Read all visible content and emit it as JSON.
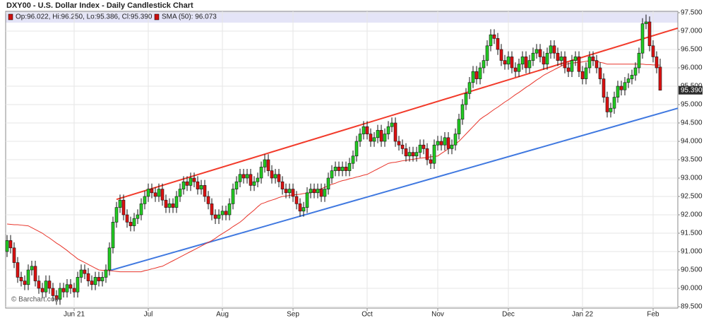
{
  "chart_data": {
    "type": "candlestick",
    "title": "DXY00 - U.S. Dollar Index - Daily Candlestick Chart",
    "ohlc_legend": "Op:96.022, Hi:96.250, Lo:95.386, Cl:95.390",
    "sma_legend": "SMA (50): 96.073",
    "watermark": "© Barchart.com",
    "last_price": {
      "value": 95.39,
      "label": "95.390"
    },
    "up_color": "#22cc22",
    "down_color": "#dd1111",
    "grid": true,
    "ylim": [
      89.5,
      97.5
    ],
    "yticks": [
      {
        "value": 89.5,
        "label": "89.500"
      },
      {
        "value": 90,
        "label": "90.000"
      },
      {
        "value": 90.5,
        "label": "90.500"
      },
      {
        "value": 91,
        "label": "91.000"
      },
      {
        "value": 91.5,
        "label": "91.500"
      },
      {
        "value": 92,
        "label": "92.000"
      },
      {
        "value": 92.5,
        "label": "92.500"
      },
      {
        "value": 93,
        "label": "93.000"
      },
      {
        "value": 93.5,
        "label": "93.500"
      },
      {
        "value": 94,
        "label": "94.000"
      },
      {
        "value": 94.5,
        "label": "94.500"
      },
      {
        "value": 95,
        "label": "95.000"
      },
      {
        "value": 95.5,
        "label": "95.500"
      },
      {
        "value": 96,
        "label": "96.000"
      },
      {
        "value": 96.5,
        "label": "96.500"
      },
      {
        "value": 97,
        "label": "97.000"
      },
      {
        "value": 97.5,
        "label": "97.500"
      }
    ],
    "categories": [
      null,
      null,
      null,
      null,
      null,
      null,
      null,
      null,
      null,
      null,
      null,
      null,
      null,
      null,
      null,
      null,
      null,
      null,
      null,
      "Jun 21",
      null,
      null,
      null,
      null,
      null,
      null,
      null,
      null,
      null,
      null,
      null,
      null,
      null,
      null,
      null,
      null,
      null,
      null,
      null,
      null,
      "Jul",
      null,
      null,
      null,
      null,
      null,
      null,
      null,
      null,
      null,
      null,
      null,
      null,
      null,
      null,
      null,
      null,
      null,
      null,
      null,
      null,
      "Aug",
      null,
      null,
      null,
      null,
      null,
      null,
      null,
      null,
      null,
      null,
      null,
      null,
      null,
      null,
      null,
      null,
      null,
      null,
      null,
      "Sep",
      null,
      null,
      null,
      null,
      null,
      null,
      null,
      null,
      null,
      null,
      null,
      null,
      null,
      null,
      null,
      null,
      null,
      null,
      null,
      null,
      "Oct",
      null,
      null,
      null,
      null,
      null,
      null,
      null,
      null,
      null,
      null,
      null,
      null,
      null,
      null,
      null,
      null,
      null,
      null,
      null,
      "Nov",
      null,
      null,
      null,
      null,
      null,
      null,
      null,
      null,
      null,
      null,
      null,
      null,
      null,
      null,
      null,
      null,
      null,
      null,
      null,
      "Dec",
      null,
      null,
      null,
      null,
      null,
      null,
      null,
      null,
      null,
      null,
      null,
      null,
      null,
      null,
      null,
      null,
      null,
      null,
      null,
      null,
      "Jan 22",
      null,
      null,
      null,
      null,
      null,
      null,
      null,
      null,
      null,
      null,
      null,
      null,
      null,
      null,
      null,
      null,
      null,
      null,
      null,
      "Feb",
      null,
      null
    ],
    "open": [
      91.0,
      91.3,
      91.1,
      90.7,
      90.3,
      90.2,
      90.1,
      90.5,
      90.6,
      90.2,
      90.0,
      89.9,
      90.2,
      90.0,
      89.8,
      89.7,
      90.0,
      89.9,
      90.1,
      90.0,
      89.9,
      90.3,
      90.5,
      90.4,
      90.2,
      90.1,
      90.3,
      90.2,
      90.3,
      90.5,
      91.1,
      91.8,
      92.2,
      92.4,
      92.0,
      91.8,
      91.7,
      91.9,
      92.0,
      92.3,
      92.5,
      92.7,
      92.6,
      92.5,
      92.7,
      92.4,
      92.2,
      92.3,
      92.2,
      92.5,
      92.7,
      92.9,
      92.8,
      93.0,
      92.9,
      92.7,
      92.8,
      92.5,
      92.3,
      92.0,
      91.9,
      92.0,
      92.1,
      92.0,
      92.3,
      92.7,
      92.9,
      93.1,
      93.0,
      93.1,
      92.8,
      92.9,
      93.0,
      93.3,
      93.5,
      93.2,
      93.0,
      93.1,
      92.9,
      92.7,
      92.6,
      92.7,
      92.5,
      92.3,
      92.1,
      92.2,
      92.6,
      92.7,
      92.6,
      92.7,
      92.5,
      92.7,
      93.0,
      93.2,
      93.3,
      93.2,
      93.3,
      93.2,
      93.4,
      93.6,
      94.0,
      94.2,
      94.4,
      94.2,
      94.0,
      94.1,
      94.3,
      94.0,
      94.2,
      94.4,
      94.5,
      94.0,
      93.9,
      93.8,
      93.6,
      93.7,
      93.6,
      93.7,
      93.9,
      93.8,
      93.5,
      93.4,
      93.9,
      94.0,
      93.9,
      94.1,
      93.8,
      93.9,
      94.2,
      94.6,
      95.0,
      95.3,
      95.6,
      95.9,
      95.7,
      96.0,
      96.2,
      96.6,
      96.9,
      96.8,
      96.5,
      96.2,
      96.1,
      96.3,
      96.0,
      95.9,
      96.1,
      96.3,
      96.0,
      96.2,
      96.4,
      96.5,
      96.3,
      96.1,
      96.4,
      96.6,
      96.4,
      96.2,
      96.3,
      96.0,
      95.9,
      96.2,
      96.3,
      95.9,
      95.7,
      96.0,
      96.3,
      96.2,
      96.0,
      95.7,
      95.2,
      94.8,
      94.9,
      95.2,
      95.5,
      95.4,
      95.6,
      95.7,
      95.8,
      96.0,
      96.4,
      97.2,
      97.25,
      96.6,
      96.3,
      96.022
    ],
    "high": [
      91.45,
      91.45,
      91.25,
      90.85,
      90.45,
      90.35,
      90.65,
      90.75,
      90.75,
      90.35,
      90.15,
      90.35,
      90.35,
      90.15,
      89.95,
      90.15,
      90.15,
      90.25,
      90.25,
      90.15,
      90.45,
      90.65,
      90.65,
      90.55,
      90.35,
      90.45,
      90.45,
      90.45,
      90.65,
      91.25,
      91.95,
      92.35,
      92.55,
      92.55,
      92.15,
      91.95,
      92.05,
      92.15,
      92.45,
      92.65,
      92.85,
      92.85,
      92.75,
      92.85,
      92.85,
      92.55,
      92.45,
      92.45,
      92.65,
      92.85,
      93.05,
      93.05,
      93.15,
      93.15,
      93.05,
      92.95,
      92.95,
      92.65,
      92.45,
      92.15,
      92.15,
      92.25,
      92.25,
      92.45,
      92.85,
      93.05,
      93.25,
      93.25,
      93.25,
      93.25,
      93.05,
      93.15,
      93.45,
      93.65,
      93.65,
      93.35,
      93.25,
      93.25,
      93.05,
      92.85,
      92.85,
      92.85,
      92.65,
      92.45,
      92.35,
      92.75,
      92.85,
      92.85,
      92.85,
      92.85,
      92.85,
      93.15,
      93.35,
      93.45,
      93.45,
      93.45,
      93.45,
      93.55,
      93.75,
      94.15,
      94.35,
      94.55,
      94.55,
      94.35,
      94.25,
      94.45,
      94.45,
      94.35,
      94.55,
      94.65,
      94.65,
      94.15,
      94.05,
      93.95,
      93.85,
      93.85,
      93.85,
      94.05,
      94.05,
      93.95,
      93.65,
      94.05,
      94.15,
      94.15,
      94.25,
      94.25,
      94.05,
      94.35,
      94.75,
      95.15,
      95.45,
      95.75,
      96.05,
      96.05,
      96.15,
      96.35,
      96.75,
      97.05,
      97.05,
      96.95,
      96.65,
      96.35,
      96.45,
      96.45,
      96.15,
      96.25,
      96.45,
      96.45,
      96.35,
      96.55,
      96.65,
      96.65,
      96.45,
      96.55,
      96.75,
      96.75,
      96.55,
      96.45,
      96.45,
      96.15,
      96.35,
      96.45,
      96.45,
      96.05,
      96.15,
      96.45,
      96.45,
      96.35,
      96.15,
      95.85,
      95.35,
      95.05,
      95.35,
      95.65,
      95.65,
      95.75,
      95.85,
      95.95,
      96.15,
      96.55,
      97.35,
      97.45,
      97.4,
      96.75,
      96.45,
      96.25
    ],
    "low": [
      90.85,
      90.95,
      90.55,
      90.15,
      90.05,
      89.95,
      89.95,
      90.35,
      90.05,
      89.85,
      89.75,
      89.75,
      89.85,
      89.65,
      89.55,
      89.55,
      89.75,
      89.75,
      89.85,
      89.75,
      89.75,
      90.15,
      90.25,
      90.05,
      89.95,
      89.95,
      90.05,
      90.05,
      90.15,
      90.35,
      90.95,
      91.65,
      92.05,
      91.85,
      91.65,
      91.55,
      91.55,
      91.75,
      91.85,
      92.15,
      92.35,
      92.45,
      92.35,
      92.35,
      92.25,
      92.05,
      92.05,
      92.05,
      92.05,
      92.35,
      92.55,
      92.65,
      92.65,
      92.75,
      92.55,
      92.55,
      92.35,
      92.15,
      91.85,
      91.75,
      91.75,
      91.85,
      91.85,
      91.85,
      92.15,
      92.55,
      92.75,
      92.85,
      92.85,
      92.65,
      92.65,
      92.75,
      92.85,
      93.15,
      93.05,
      92.85,
      92.85,
      92.75,
      92.55,
      92.45,
      92.45,
      92.35,
      92.15,
      91.95,
      91.95,
      92.05,
      92.45,
      92.45,
      92.45,
      92.35,
      92.35,
      92.55,
      92.85,
      93.05,
      93.05,
      93.05,
      93.05,
      93.05,
      93.25,
      93.45,
      93.85,
      94.05,
      94.05,
      93.85,
      93.85,
      93.95,
      93.85,
      93.85,
      94.05,
      94.25,
      93.85,
      93.75,
      93.65,
      93.45,
      93.45,
      93.45,
      93.45,
      93.55,
      93.65,
      93.35,
      93.25,
      93.25,
      93.75,
      93.75,
      93.75,
      93.65,
      93.65,
      93.75,
      94.05,
      94.45,
      94.85,
      95.15,
      95.45,
      95.55,
      95.55,
      95.85,
      96.05,
      96.45,
      96.65,
      96.35,
      96.05,
      95.95,
      95.95,
      95.85,
      95.75,
      95.75,
      95.95,
      95.85,
      95.85,
      96.05,
      96.25,
      96.15,
      95.95,
      95.95,
      96.25,
      96.25,
      96.05,
      96.05,
      95.85,
      95.75,
      95.75,
      96.05,
      95.75,
      95.55,
      95.55,
      95.85,
      96.05,
      95.85,
      95.55,
      95.05,
      94.65,
      94.65,
      94.75,
      95.05,
      95.25,
      95.25,
      95.45,
      95.55,
      95.65,
      95.85,
      96.25,
      97.05,
      96.45,
      96.15,
      95.85,
      95.386
    ],
    "close": [
      91.3,
      91.1,
      90.7,
      90.3,
      90.2,
      90.1,
      90.5,
      90.6,
      90.2,
      90.0,
      89.9,
      90.2,
      90.0,
      89.8,
      89.7,
      90.0,
      89.9,
      90.1,
      90.0,
      89.9,
      90.3,
      90.5,
      90.4,
      90.2,
      90.1,
      90.3,
      90.2,
      90.3,
      90.5,
      91.1,
      91.8,
      92.2,
      92.4,
      92.0,
      91.8,
      91.7,
      91.9,
      92.0,
      92.3,
      92.5,
      92.7,
      92.6,
      92.5,
      92.7,
      92.4,
      92.2,
      92.3,
      92.2,
      92.5,
      92.7,
      92.9,
      92.8,
      93.0,
      92.9,
      92.7,
      92.8,
      92.5,
      92.3,
      92.0,
      91.9,
      92.0,
      92.1,
      92.0,
      92.3,
      92.7,
      92.9,
      93.1,
      93.0,
      93.1,
      92.8,
      92.9,
      93.0,
      93.3,
      93.5,
      93.2,
      93.0,
      93.1,
      92.9,
      92.7,
      92.6,
      92.7,
      92.5,
      92.3,
      92.1,
      92.2,
      92.6,
      92.7,
      92.6,
      92.7,
      92.5,
      92.7,
      93.0,
      93.2,
      93.3,
      93.2,
      93.3,
      93.2,
      93.4,
      93.6,
      94.0,
      94.2,
      94.4,
      94.2,
      94.0,
      94.1,
      94.3,
      94.0,
      94.2,
      94.4,
      94.5,
      94.0,
      93.9,
      93.8,
      93.6,
      93.7,
      93.6,
      93.7,
      93.9,
      93.8,
      93.5,
      93.4,
      93.9,
      94.0,
      93.9,
      94.1,
      93.8,
      93.9,
      94.2,
      94.6,
      95.0,
      95.3,
      95.6,
      95.9,
      95.7,
      96.0,
      96.2,
      96.6,
      96.9,
      96.8,
      96.5,
      96.2,
      96.1,
      96.3,
      96.0,
      95.9,
      96.1,
      96.3,
      96.0,
      96.2,
      96.4,
      96.5,
      96.3,
      96.1,
      96.4,
      96.6,
      96.4,
      96.2,
      96.3,
      96.0,
      95.9,
      96.2,
      96.3,
      95.9,
      95.7,
      96.0,
      96.3,
      96.2,
      96.0,
      95.7,
      95.2,
      94.8,
      94.9,
      95.2,
      95.5,
      95.4,
      95.6,
      95.7,
      95.8,
      96.0,
      96.4,
      97.2,
      97.25,
      96.6,
      96.3,
      96.0,
      95.39
    ],
    "sma": {
      "color": "#e8342a",
      "values": [
        91.75,
        91.74,
        91.73,
        91.73,
        91.72,
        91.71,
        91.7,
        91.65,
        91.6,
        91.55,
        91.5,
        91.43,
        91.37,
        91.3,
        91.23,
        91.17,
        91.1,
        91.03,
        90.95,
        90.88,
        90.8,
        90.75,
        90.7,
        90.65,
        90.6,
        90.55,
        90.5,
        90.49,
        90.48,
        90.48,
        90.47,
        90.46,
        90.45,
        90.45,
        90.45,
        90.45,
        90.45,
        90.45,
        90.45,
        90.48,
        90.5,
        90.53,
        90.55,
        90.58,
        90.6,
        90.65,
        90.7,
        90.75,
        90.8,
        90.85,
        90.9,
        90.95,
        91.0,
        91.05,
        91.1,
        91.15,
        91.2,
        91.25,
        91.3,
        91.36,
        91.43,
        91.49,
        91.55,
        91.61,
        91.68,
        91.74,
        91.8,
        91.88,
        91.97,
        92.05,
        92.13,
        92.22,
        92.3,
        92.33,
        92.37,
        92.4,
        92.43,
        92.47,
        92.5,
        92.51,
        92.53,
        92.54,
        92.55,
        92.56,
        92.58,
        92.59,
        92.6,
        92.64,
        92.68,
        92.71,
        92.75,
        92.79,
        92.83,
        92.86,
        92.9,
        92.93,
        92.95,
        92.98,
        93.0,
        93.03,
        93.05,
        93.08,
        93.1,
        93.15,
        93.2,
        93.25,
        93.3,
        93.35,
        93.4,
        93.42,
        93.43,
        93.45,
        93.47,
        93.48,
        93.5,
        93.51,
        93.53,
        93.54,
        93.55,
        93.56,
        93.58,
        93.59,
        93.6,
        93.67,
        93.73,
        93.8,
        93.87,
        93.93,
        94.0,
        94.1,
        94.2,
        94.3,
        94.4,
        94.5,
        94.6,
        94.67,
        94.73,
        94.8,
        94.87,
        94.93,
        95.0,
        95.07,
        95.13,
        95.2,
        95.27,
        95.33,
        95.4,
        95.47,
        95.53,
        95.6,
        95.67,
        95.73,
        95.8,
        95.85,
        95.9,
        95.95,
        96.0,
        96.05,
        96.1,
        96.11,
        96.13,
        96.14,
        96.15,
        96.16,
        96.18,
        96.19,
        96.2,
        96.18,
        96.15,
        96.13,
        96.1,
        96.1,
        96.1,
        96.1,
        96.1,
        96.1,
        96.1,
        96.1,
        96.1,
        96.1,
        96.1,
        96.09,
        96.09,
        96.08,
        96.08,
        96.073
      ]
    },
    "trendlines": [
      {
        "color": "#f23a2a",
        "values": [
          92.42,
          97.08
        ]
      },
      {
        "color": "#3f78e0",
        "values": [
          90.48,
          94.9
        ]
      }
    ]
  }
}
